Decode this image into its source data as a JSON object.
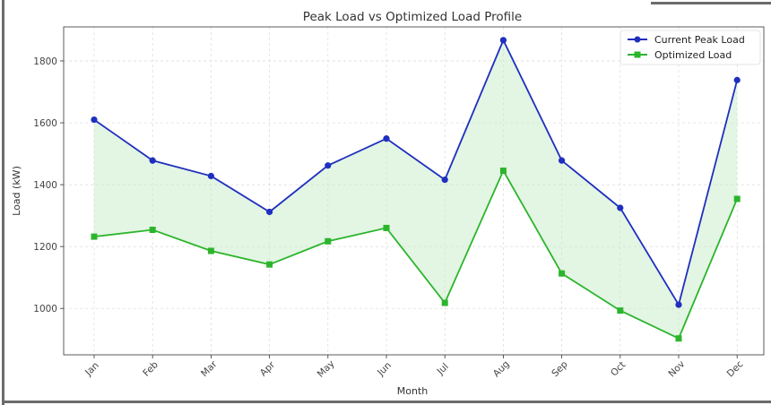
{
  "chart_data": {
    "type": "line",
    "title": "Peak Load vs Optimized Load Profile",
    "xlabel": "Month",
    "ylabel": "Load (kW)",
    "categories": [
      "Jan",
      "Feb",
      "Mar",
      "Apr",
      "May",
      "Jun",
      "Jul",
      "Aug",
      "Sep",
      "Oct",
      "Nov",
      "Dec"
    ],
    "series": [
      {
        "name": "Current Peak Load",
        "color": "#1f2fbf",
        "marker": "circle",
        "values": [
          1610,
          1478,
          1428,
          1312,
          1462,
          1549,
          1416,
          1867,
          1478,
          1325,
          1012,
          1738
        ]
      },
      {
        "name": "Optimized Load",
        "color": "#2cb52c",
        "marker": "square",
        "values": [
          1232,
          1254,
          1186,
          1142,
          1217,
          1260,
          1018,
          1445,
          1113,
          993,
          903,
          1354
        ]
      }
    ],
    "fill_between": {
      "color": "#c8ebc8"
    },
    "ylim": [
      850,
      1910
    ],
    "yticks": [
      1000,
      1200,
      1400,
      1600,
      1800
    ],
    "grid": true,
    "legend": "top-right"
  }
}
